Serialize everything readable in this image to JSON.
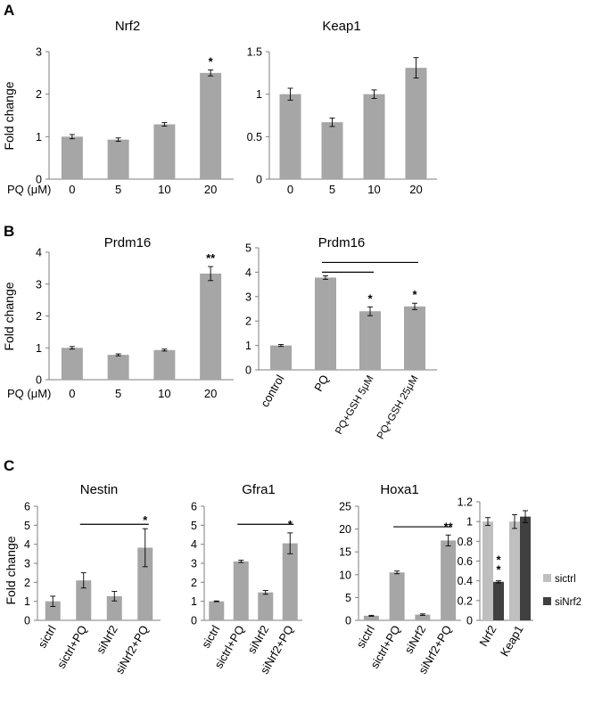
{
  "panels": {
    "A": "A",
    "B": "B",
    "C": "C"
  },
  "colors": {
    "bar": "#a6a6a6",
    "series1": "#bfbfbf",
    "series2": "#404040",
    "axis": "#7f7f7f",
    "line": "#000000"
  },
  "common": {
    "ylabel": "Fold change",
    "x_prefix": "PQ (μM)"
  },
  "chart_data": [
    {
      "id": "A-Nrf2",
      "type": "bar",
      "title": "Nrf2",
      "ylabel": "Fold change",
      "x_prefix": "PQ (μM)",
      "categories": [
        "0",
        "5",
        "10",
        "20"
      ],
      "values": [
        1.0,
        0.93,
        1.29,
        2.5
      ],
      "errors": [
        0.05,
        0.04,
        0.04,
        0.07
      ],
      "ylim": [
        0,
        3
      ],
      "yticks": [
        "0",
        "1",
        "2",
        "3"
      ],
      "significance": [
        "",
        "",
        "",
        "*"
      ],
      "brackets": []
    },
    {
      "id": "A-Keap1",
      "type": "bar",
      "title": "Keap1",
      "ylabel": "",
      "x_prefix": "",
      "categories": [
        "0",
        "5",
        "10",
        "20"
      ],
      "values": [
        1.0,
        0.67,
        1.0,
        1.31
      ],
      "errors": [
        0.07,
        0.05,
        0.05,
        0.12
      ],
      "ylim": [
        0,
        1.5
      ],
      "yticks": [
        "0",
        "0.5",
        "1",
        "1.5"
      ],
      "significance": [
        "",
        "",
        "",
        ""
      ],
      "brackets": []
    },
    {
      "id": "B-Prdm16-PQ",
      "type": "bar",
      "title": "Prdm16",
      "ylabel": "Fold change",
      "x_prefix": "PQ (μM)",
      "categories": [
        "0",
        "5",
        "10",
        "20"
      ],
      "values": [
        1.0,
        0.78,
        0.93,
        3.33
      ],
      "errors": [
        0.04,
        0.03,
        0.03,
        0.22
      ],
      "ylim": [
        0,
        4
      ],
      "yticks": [
        "0",
        "1",
        "2",
        "3",
        "4"
      ],
      "significance": [
        "",
        "",
        "",
        "**"
      ],
      "brackets": []
    },
    {
      "id": "B-Prdm16-GSH",
      "type": "bar",
      "title": "Prdm16",
      "ylabel": "",
      "x_prefix": "",
      "categories": [
        "control",
        "PQ",
        "PQ+GSH 5μM",
        "PQ+GSH 25μM"
      ],
      "values": [
        1.0,
        3.78,
        2.4,
        2.6
      ],
      "errors": [
        0.04,
        0.07,
        0.18,
        0.13
      ],
      "ylim": [
        0,
        5
      ],
      "yticks": [
        "0",
        "1",
        "2",
        "3",
        "4",
        "5"
      ],
      "significance": [
        "",
        "",
        "*",
        "*"
      ],
      "rotated_labels": true,
      "brackets": [
        {
          "from": 1,
          "to": 2,
          "y": 4.0
        },
        {
          "from": 1,
          "to": 3,
          "y": 4.4
        }
      ]
    },
    {
      "id": "C-Nestin",
      "type": "bar",
      "title": "Nestin",
      "ylabel": "Fold change",
      "x_prefix": "",
      "categories": [
        "sictrl",
        "sictrl+PQ",
        "siNrf2",
        "siNrf2+PQ"
      ],
      "values": [
        1.0,
        2.1,
        1.27,
        3.82
      ],
      "errors": [
        0.27,
        0.4,
        0.25,
        1.0
      ],
      "ylim": [
        0,
        6
      ],
      "yticks": [
        "0",
        "1",
        "2",
        "3",
        "4",
        "5",
        "6"
      ],
      "significance": [
        "",
        "",
        "",
        "*"
      ],
      "rotated_labels": true,
      "brackets": [
        {
          "from": 1,
          "to": 3,
          "y": 5.05
        }
      ]
    },
    {
      "id": "C-Gfra1",
      "type": "bar",
      "title": "Gfra1",
      "ylabel": "",
      "x_prefix": "",
      "categories": [
        "sictrl",
        "sictrl+PQ",
        "siNrf2",
        "siNrf2+PQ"
      ],
      "values": [
        1.0,
        3.1,
        1.47,
        4.05
      ],
      "errors": [
        0.02,
        0.06,
        0.1,
        0.55
      ],
      "ylim": [
        0,
        6
      ],
      "yticks": [
        "0",
        "1",
        "2",
        "3",
        "4",
        "5",
        "6"
      ],
      "significance": [
        "",
        "",
        "",
        "*"
      ],
      "rotated_labels": true,
      "brackets": [
        {
          "from": 1,
          "to": 3,
          "y": 5.05
        }
      ]
    },
    {
      "id": "C-Hoxa1",
      "type": "bar",
      "title": "Hoxa1",
      "ylabel": "",
      "x_prefix": "",
      "categories": [
        "sictrl",
        "sictrl+PQ",
        "siNrf2",
        "siNrf2+PQ"
      ],
      "values": [
        1.0,
        10.5,
        1.25,
        17.5
      ],
      "errors": [
        0.1,
        0.3,
        0.15,
        1.2
      ],
      "ylim": [
        0,
        25
      ],
      "yticks": [
        "0",
        "5",
        "10",
        "15",
        "20",
        "25"
      ],
      "significance": [
        "",
        "",
        "",
        "**"
      ],
      "rotated_labels": true,
      "brackets": [
        {
          "from": 1,
          "to": 3,
          "y": 20.5
        }
      ]
    },
    {
      "id": "C-siNrf2",
      "type": "bar",
      "title": "",
      "ylabel": "",
      "x_prefix": "",
      "categories": [
        "Nrf2",
        "Keap1"
      ],
      "series": [
        {
          "name": "sictrl",
          "values": [
            1.0,
            1.0
          ],
          "errors": [
            0.04,
            0.07
          ]
        },
        {
          "name": "siNrf2",
          "values": [
            0.39,
            1.05
          ],
          "errors": [
            0.01,
            0.06
          ]
        }
      ],
      "ylim": [
        0,
        1.2
      ],
      "yticks": [
        "0",
        "0.2",
        "0.4",
        "0.6",
        "0.8",
        "1",
        "1.2"
      ],
      "rotated_labels": true,
      "significance": [
        [
          "",
          ""
        ],
        [
          "**",
          ""
        ]
      ],
      "brackets": []
    }
  ]
}
